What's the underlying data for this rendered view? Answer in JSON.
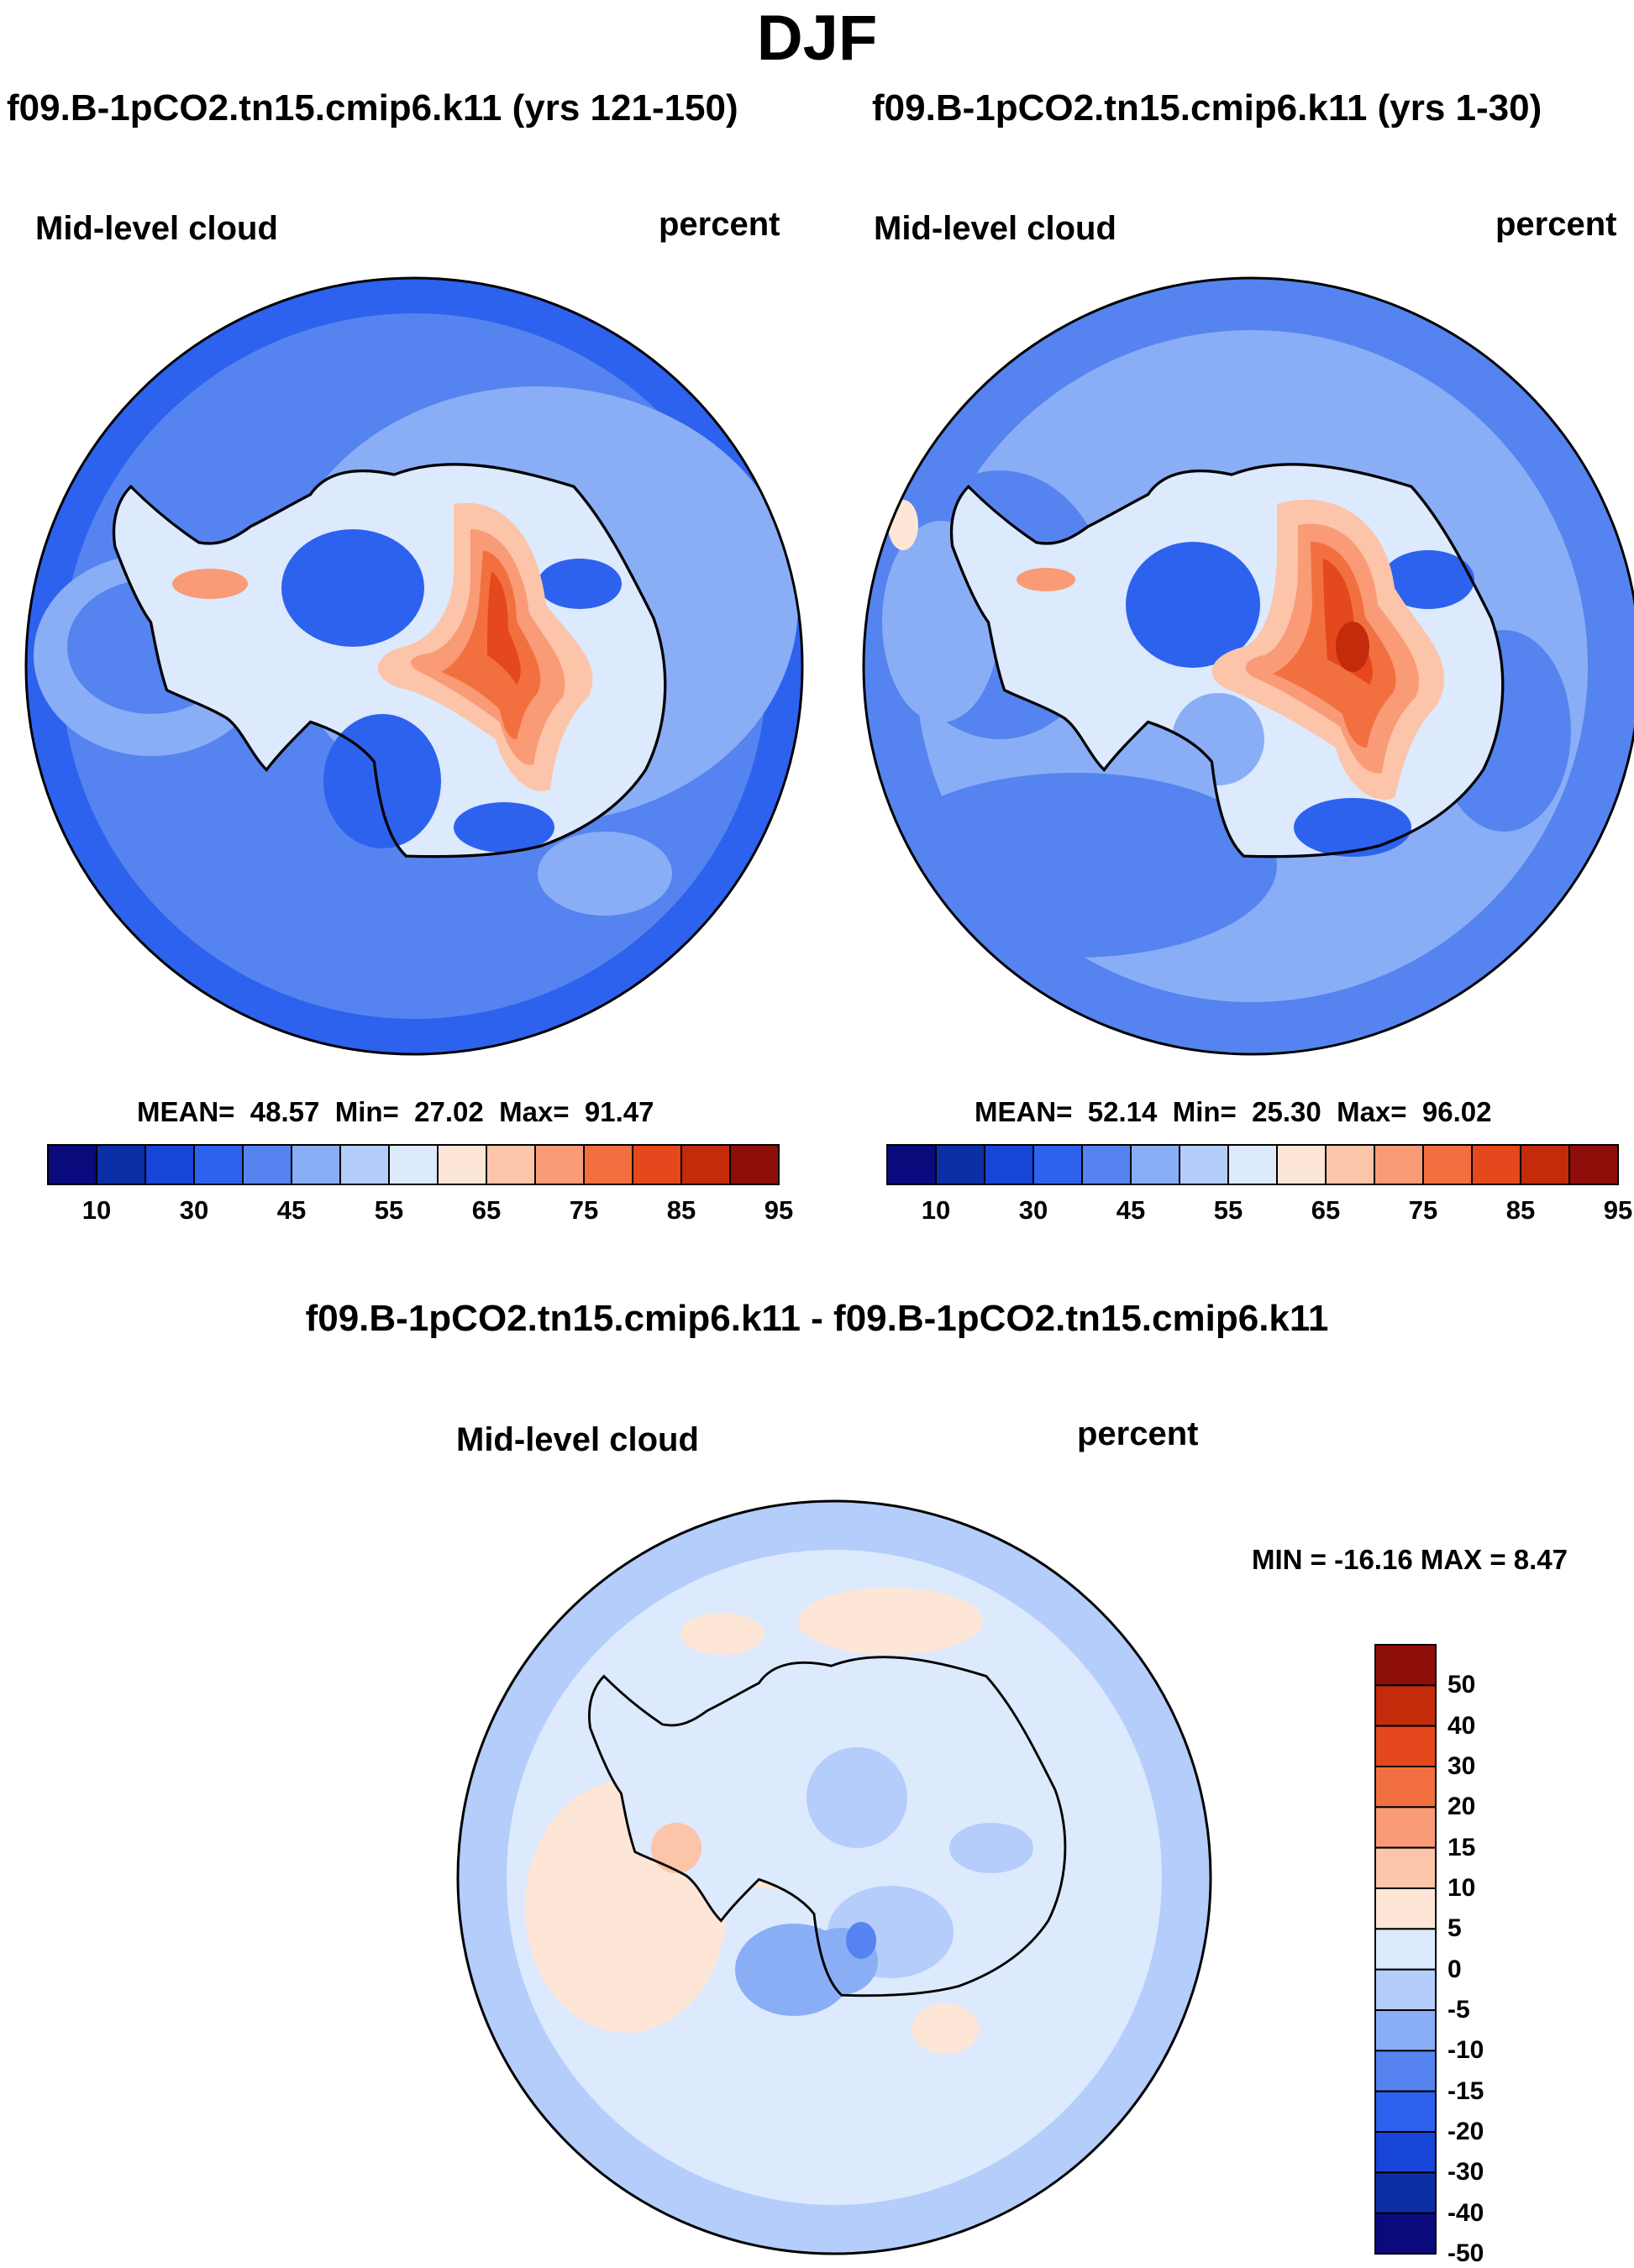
{
  "figure": {
    "title": "DJF"
  },
  "panels": [
    {
      "title": "f09.B-1pCO2.tn15.cmip6.k11 (yrs 121-150)",
      "variable": "Mid-level cloud",
      "units": "percent",
      "stats": {
        "mean_label": "MEAN=",
        "mean": "48.57",
        "min_label": "Min=",
        "min": "27.02",
        "max_label": "Max=",
        "max": "91.47"
      }
    },
    {
      "title": "f09.B-1pCO2.tn15.cmip6.k11 (yrs 1-30)",
      "variable": "Mid-level cloud",
      "units": "percent",
      "stats": {
        "mean_label": "MEAN=",
        "mean": "52.14",
        "min_label": "Min=",
        "min": "25.30",
        "max_label": "Max=",
        "max": "96.02"
      }
    }
  ],
  "diff_panel": {
    "title": "f09.B-1pCO2.tn15.cmip6.k11 - f09.B-1pCO2.tn15.cmip6.k11",
    "variable": "Mid-level cloud",
    "units": "percent",
    "minmax": "MIN = -16.16 MAX =   8.47"
  },
  "colorbar_main": {
    "colors": [
      "#0a0a7c",
      "#0c2fa6",
      "#1745d8",
      "#2d62ee",
      "#5584f0",
      "#8aaef6",
      "#b4cdfb",
      "#dde9fd",
      "#fde6d6",
      "#fcc4a8",
      "#f89b76",
      "#f2703f",
      "#e4481c",
      "#c42b0b",
      "#8e0f0a"
    ],
    "labels": [
      "10",
      "30",
      "45",
      "55",
      "65",
      "75",
      "85",
      "95"
    ]
  },
  "colorbar_diff": {
    "colors": [
      "#0a0a7c",
      "#0c2fa6",
      "#1745d8",
      "#2d62ee",
      "#5584f0",
      "#8aaef6",
      "#b4cdfb",
      "#dde9fd",
      "#fde6d6",
      "#fcc4a8",
      "#f89b76",
      "#f2703f",
      "#e4481c",
      "#c42b0b",
      "#8e0f0a"
    ],
    "labels": [
      "50",
      "40",
      "30",
      "20",
      "15",
      "10",
      "5",
      "0",
      "-5",
      "-10",
      "-15",
      "-20",
      "-30",
      "-40",
      "-50"
    ]
  },
  "map_colors": {
    "ocean_outer": "#2d62ee",
    "ocean_mid": "#5584f0",
    "ocean_light": "#8aaef6",
    "diff_ocean": "#b4cdfb",
    "diff_inner": "#dde9fd",
    "coast": "#000000"
  }
}
